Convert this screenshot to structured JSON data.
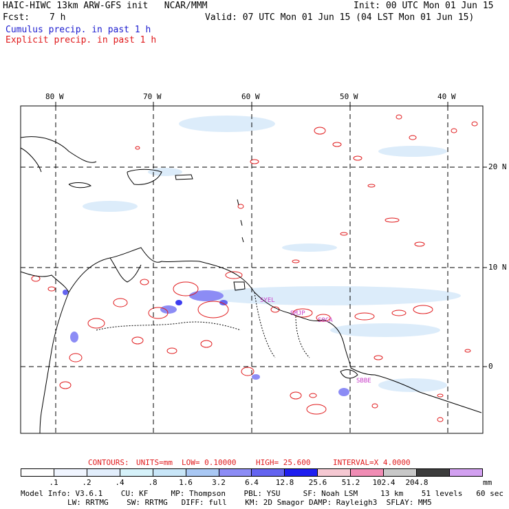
{
  "header": {
    "title_left": "HAIC-HIWC 13km ARW-GFS init   NCAR/MMM",
    "init": "Init: 00 UTC Mon 01 Jun 15",
    "fcst_label": "Fcst:",
    "fcst_value": "7 h",
    "valid": "Valid: 07 UTC Mon 01 Jun 15 (04 LST Mon 01 Jun 15)",
    "cumulus_label": "Cumulus precip. in past 1 h",
    "explicit_label": "Explicit precip. in past 1 h"
  },
  "map": {
    "lon_labels": [
      "80 W",
      "70 W",
      "60 W",
      "50 W",
      "40 W"
    ],
    "lat_labels": [
      "20 N",
      "10 N",
      "0"
    ],
    "station_labels": [
      "SYEL",
      "SMJP",
      "SOCA",
      "SBBE"
    ],
    "colors": {
      "explicit_contour": "#e0191b",
      "cumulus_light": "#dcecfa",
      "cumulus_mid": "#8c8cf5",
      "cumulus_heavy": "#3c3cf0",
      "coastline": "#000000",
      "grid": "#000000"
    }
  },
  "contour_info": {
    "contours": "CONTOURS:",
    "units": "UNITS=mm",
    "low": "LOW= 0.10000",
    "high": "HIGH= 25.600",
    "interval": "INTERVAL=X 4.0000"
  },
  "colorbar": {
    "ticks": [
      ".1",
      ".2",
      ".4",
      ".8",
      "1.6",
      "3.2",
      "6.4",
      "12.8",
      "25.6",
      "51.2",
      "102.4",
      "204.8"
    ],
    "units": "mm",
    "colors": [
      "#ffffff",
      "#f0f5ff",
      "#e2eefc",
      "#d6f2fa",
      "#c8e6f8",
      "#a9c8f4",
      "#8c8cf5",
      "#6464f0",
      "#1e1ef0",
      "#f5c8d2",
      "#f08cb4",
      "#c8c8c8",
      "#3c3c3c",
      "#d2a0f0"
    ]
  },
  "model_info": {
    "line1": "Model Info: V3.6.1    CU: KF     MP: Thompson    PBL: YSU     SF: Noah LSM     13 km    51 levels   60 sec",
    "line2": "LW: RRTMG    SW: RRTMG   DIFF: full    KM: 2D Smagor DAMP: Rayleigh3  SFLAY: MM5"
  }
}
